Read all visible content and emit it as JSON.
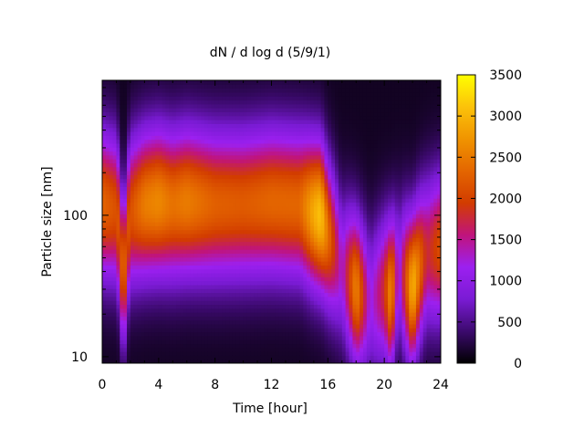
{
  "chart_data": {
    "type": "heatmap",
    "title": "dN / d log d (5/9/1)",
    "xlabel": "Time [hour]",
    "ylabel": "Particle size [nm]",
    "xlim": [
      0,
      24
    ],
    "ylim": [
      9,
      900
    ],
    "y_scale": "log",
    "x_ticks": [
      0,
      4,
      8,
      12,
      16,
      20,
      24
    ],
    "x_tick_labels": [
      "0",
      "4",
      "8",
      "12",
      "16",
      "20",
      "24"
    ],
    "y_ticks": [
      10,
      100
    ],
    "y_tick_labels": [
      "10",
      "100"
    ],
    "colorbar": {
      "range": [
        0,
        3500
      ],
      "ticks": [
        0,
        500,
        1000,
        1500,
        2000,
        2500,
        3000,
        3500
      ],
      "tick_labels": [
        "0",
        "500",
        "1000",
        "1500",
        "2000",
        "2500",
        "3000",
        "3500"
      ],
      "palette": [
        "#000000",
        "#3c0a6e",
        "#7a1bd4",
        "#9c20f0",
        "#c0147c",
        "#d23c00",
        "#e46600",
        "#f09400",
        "#fcc20a",
        "#ffff00"
      ]
    },
    "grid": false,
    "legend": "none",
    "times_hour": [
      0,
      1,
      1.5,
      2,
      3,
      4,
      5,
      6,
      8,
      10,
      12,
      14,
      15,
      15.5,
      16,
      17,
      18,
      19,
      20,
      20.5,
      21,
      22,
      23,
      24
    ],
    "mode_diameter_nm": [
      120,
      110,
      26,
      105,
      120,
      125,
      120,
      125,
      120,
      120,
      125,
      120,
      105,
      100,
      75,
      42,
      30,
      25,
      30,
      28,
      40,
      30,
      55,
      60
    ],
    "peak_dN_dlogd": [
      2200,
      2000,
      2100,
      2000,
      2400,
      2500,
      2300,
      2400,
      2150,
      2100,
      2200,
      2200,
      2800,
      3000,
      2300,
      1100,
      2500,
      1000,
      1700,
      2600,
      900,
      2900,
      1600,
      2000
    ]
  }
}
